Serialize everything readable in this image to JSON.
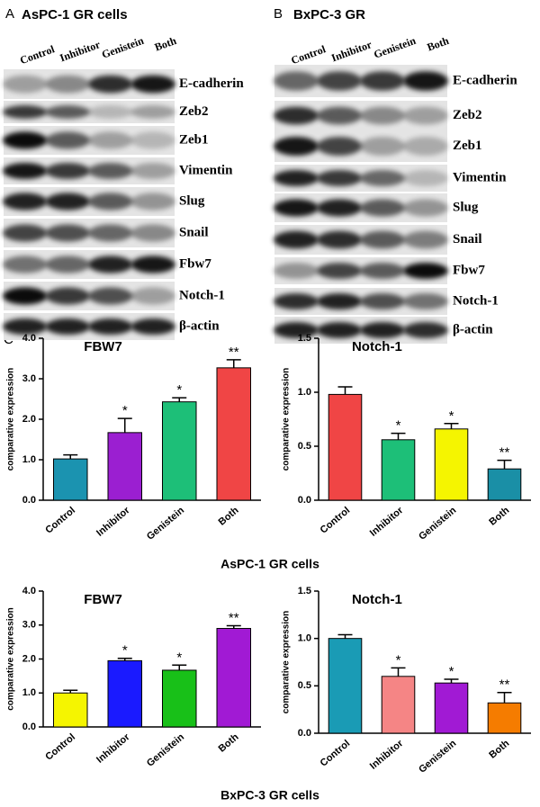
{
  "blots": [
    {
      "letter": "A",
      "title": "AsPC-1 GR cells",
      "lanes": [
        "Control",
        "Inhibitor",
        "Genistein",
        "Both"
      ],
      "proteins": [
        "E-cadherin",
        "Zeb2",
        "Zeb1",
        "Vimentin",
        "Slug",
        "Snail",
        "Fbw7",
        "Notch-1",
        "β-actin"
      ]
    },
    {
      "letter": "B",
      "title": "BxPC-3 GR",
      "lanes": [
        "Control",
        "Inhibitor",
        "Genistein",
        "Both"
      ],
      "proteins": [
        "E-cadherin",
        "Zeb2",
        "Zeb1",
        "Vimentin",
        "Slug",
        "Snail",
        "Fbw7",
        "Notch-1",
        "β-actin"
      ]
    }
  ],
  "panel_c_letter": "C",
  "group_labels": [
    "AsPC-1 GR cells",
    "BxPC-3 GR cells"
  ],
  "chart_data": [
    {
      "type": "bar",
      "title": "FBW7",
      "y_label": "comparative expression",
      "categories": [
        "Control",
        "Inhibitor",
        "Genistein",
        "Both"
      ],
      "values": [
        1.02,
        1.67,
        2.43,
        3.27
      ],
      "errors": [
        0.1,
        0.35,
        0.1,
        0.2
      ],
      "annotations": [
        null,
        "*",
        "*",
        "**"
      ],
      "colors": [
        "#1b93b0",
        "#9b1fd1",
        "#1dbf78",
        "#f04545"
      ],
      "ylim": [
        0,
        4
      ],
      "yticks": [
        {
          "value": 0,
          "label": "0.0"
        },
        {
          "value": 1,
          "label": "1.0"
        },
        {
          "value": 2,
          "label": "2.0"
        },
        {
          "value": 3,
          "label": "3.0"
        },
        {
          "value": 4,
          "label": "4.0"
        }
      ]
    },
    {
      "type": "bar",
      "title": "Notch-1",
      "y_label": "comparative expression",
      "categories": [
        "Control",
        "Inhibitor",
        "Genistein",
        "Both"
      ],
      "values": [
        0.98,
        0.56,
        0.66,
        0.29
      ],
      "errors": [
        0.07,
        0.06,
        0.05,
        0.08
      ],
      "annotations": [
        null,
        "*",
        "*",
        "**"
      ],
      "colors": [
        "#f04545",
        "#1dbf78",
        "#f5f500",
        "#1a8fa6"
      ],
      "ylim": [
        0,
        1.5
      ],
      "yticks": [
        {
          "value": 0,
          "label": "0.0"
        },
        0.5,
        {
          "value": 1,
          "label": "1.0"
        },
        1.5
      ]
    },
    {
      "type": "bar",
      "title": "FBW7",
      "y_label": "comparative expression",
      "categories": [
        "Control",
        "Inhibitor",
        "Genistein",
        "Both"
      ],
      "values": [
        1.0,
        1.95,
        1.67,
        2.9
      ],
      "errors": [
        0.08,
        0.07,
        0.15,
        0.08
      ],
      "annotations": [
        null,
        "*",
        "*",
        "**"
      ],
      "colors": [
        "#f5f500",
        "#1a1aff",
        "#18c018",
        "#a11ad4"
      ],
      "ylim": [
        0,
        4
      ],
      "yticks": [
        {
          "value": 0,
          "label": "0.0"
        },
        {
          "value": 1,
          "label": "1.0"
        },
        {
          "value": 2,
          "label": "2.0"
        },
        {
          "value": 3,
          "label": "3.0"
        },
        {
          "value": 4,
          "label": "4.0"
        }
      ]
    },
    {
      "type": "bar",
      "title": "Notch-1",
      "y_label": "comparative expression",
      "categories": [
        "Control",
        "Inhibitor",
        "Genistein",
        "Both"
      ],
      "values": [
        1.0,
        0.6,
        0.53,
        0.32
      ],
      "errors": [
        0.04,
        0.09,
        0.04,
        0.11
      ],
      "annotations": [
        null,
        "*",
        "*",
        "**"
      ],
      "colors": [
        "#1a9bb5",
        "#f58585",
        "#a11ad4",
        "#f57c00"
      ],
      "ylim": [
        0,
        1.5
      ],
      "yticks": [
        {
          "value": 0,
          "label": "0.0"
        },
        0.5,
        {
          "value": 1,
          "label": "1.0"
        },
        1.5
      ]
    }
  ]
}
